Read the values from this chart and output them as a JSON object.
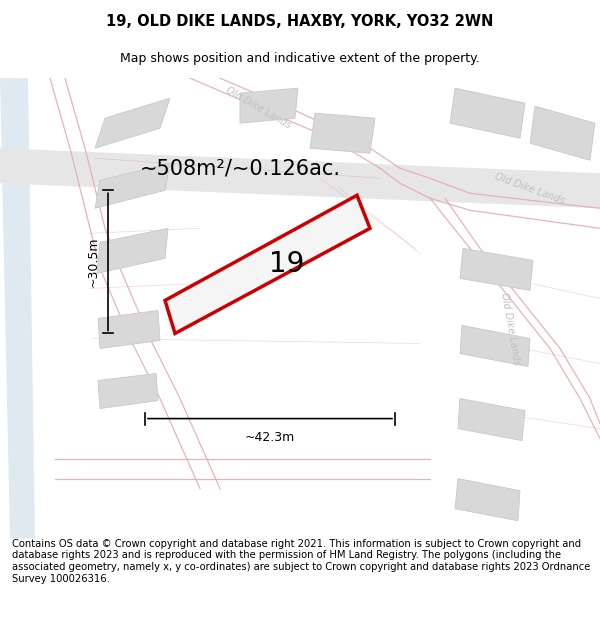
{
  "title": "19, OLD DIKE LANDS, HAXBY, YORK, YO32 2WN",
  "subtitle": "Map shows position and indicative extent of the property.",
  "area_text": "~508m²/~0.126ac.",
  "plot_number": "19",
  "width_label": "~42.3m",
  "height_label": "~30.5m",
  "copyright_text": "Contains OS data © Crown copyright and database right 2021. This information is subject to Crown copyright and database rights 2023 and is reproduced with the permission of HM Land Registry. The polygons (including the associated geometry, namely x, y co-ordinates) are subject to Crown copyright and database rights 2023 Ordnance Survey 100026316.",
  "map_bg": "#f2f0ee",
  "plot_fill": "#f5f5f5",
  "plot_edge": "#cc0000",
  "building_fill": "#d8d8d8",
  "building_edge": "#c8c8c8",
  "road_line_color": "#e8aaaa",
  "road_fill": "#e8e8e8",
  "water_color": "#c5d8e8",
  "street_label_color": "#c0c0c0",
  "title_fontsize": 10.5,
  "subtitle_fontsize": 9,
  "area_fontsize": 15,
  "plot_label_fontsize": 20,
  "dim_fontsize": 9,
  "copyright_fontsize": 7.2
}
